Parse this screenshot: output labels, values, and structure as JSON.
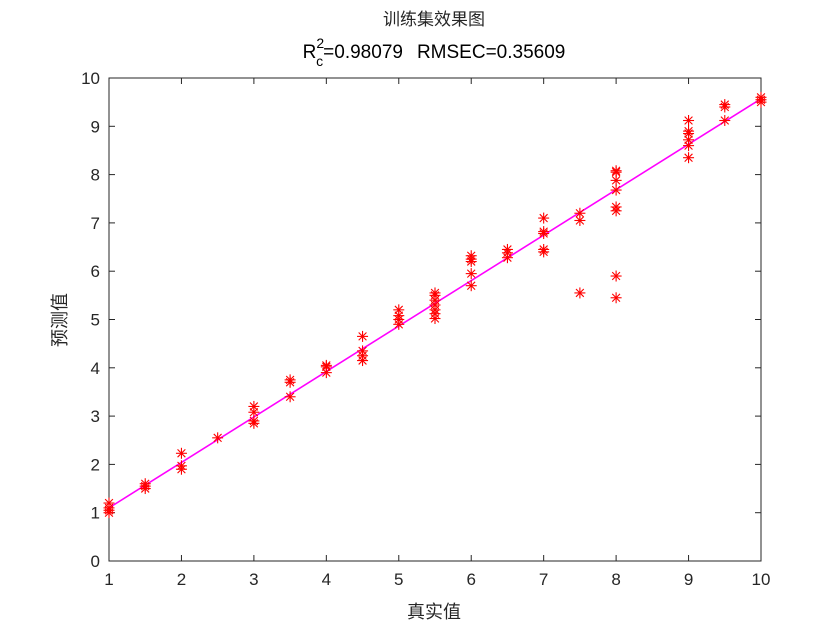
{
  "chart_data": {
    "type": "scatter",
    "title": "训练集效果图",
    "subtitle": {
      "r_base": "R",
      "r_sup": "2",
      "r_sub": "c",
      "r_value": "=0.98079",
      "rmsec": "RMSEC=0.35609"
    },
    "xlabel": "真实值",
    "ylabel": "预测值",
    "xlim": [
      1,
      10
    ],
    "ylim": [
      0,
      10
    ],
    "xticks": [
      "1",
      "2",
      "3",
      "4",
      "5",
      "6",
      "7",
      "8",
      "9",
      "10"
    ],
    "yticks": [
      "0",
      "1",
      "2",
      "3",
      "4",
      "5",
      "6",
      "7",
      "8",
      "9",
      "10"
    ],
    "grid": false,
    "marker": "asterisk",
    "marker_color": "#ff0000",
    "fit_line_color": "#ff00ff",
    "fit_line": {
      "x": [
        1,
        10
      ],
      "y": [
        1.1,
        9.57
      ]
    },
    "points": [
      {
        "x": 1,
        "y": 1.0
      },
      {
        "x": 1,
        "y": 1.05
      },
      {
        "x": 1,
        "y": 1.1
      },
      {
        "x": 1,
        "y": 1.2
      },
      {
        "x": 1.5,
        "y": 1.5
      },
      {
        "x": 1.5,
        "y": 1.55
      },
      {
        "x": 1.5,
        "y": 1.6
      },
      {
        "x": 2,
        "y": 1.9
      },
      {
        "x": 2,
        "y": 1.97
      },
      {
        "x": 2,
        "y": 2.23
      },
      {
        "x": 2.5,
        "y": 2.55
      },
      {
        "x": 3,
        "y": 2.85
      },
      {
        "x": 3,
        "y": 2.9
      },
      {
        "x": 3,
        "y": 3.08
      },
      {
        "x": 3,
        "y": 3.2
      },
      {
        "x": 3.5,
        "y": 3.4
      },
      {
        "x": 3.5,
        "y": 3.7
      },
      {
        "x": 3.5,
        "y": 3.75
      },
      {
        "x": 4,
        "y": 3.9
      },
      {
        "x": 4,
        "y": 4.02
      },
      {
        "x": 4,
        "y": 4.05
      },
      {
        "x": 4.5,
        "y": 4.15
      },
      {
        "x": 4.5,
        "y": 4.25
      },
      {
        "x": 4.5,
        "y": 4.35
      },
      {
        "x": 4.5,
        "y": 4.65
      },
      {
        "x": 5,
        "y": 4.9
      },
      {
        "x": 5,
        "y": 5.0
      },
      {
        "x": 5,
        "y": 5.08
      },
      {
        "x": 5,
        "y": 5.2
      },
      {
        "x": 5.5,
        "y": 5.02
      },
      {
        "x": 5.5,
        "y": 5.12
      },
      {
        "x": 5.5,
        "y": 5.2
      },
      {
        "x": 5.5,
        "y": 5.3
      },
      {
        "x": 5.5,
        "y": 5.4
      },
      {
        "x": 5.5,
        "y": 5.5
      },
      {
        "x": 5.5,
        "y": 5.55
      },
      {
        "x": 6,
        "y": 5.7
      },
      {
        "x": 6,
        "y": 5.95
      },
      {
        "x": 6,
        "y": 6.2
      },
      {
        "x": 6,
        "y": 6.25
      },
      {
        "x": 6,
        "y": 6.32
      },
      {
        "x": 6.5,
        "y": 6.28
      },
      {
        "x": 6.5,
        "y": 6.38
      },
      {
        "x": 6.5,
        "y": 6.45
      },
      {
        "x": 7,
        "y": 6.4
      },
      {
        "x": 7,
        "y": 6.45
      },
      {
        "x": 7,
        "y": 6.78
      },
      {
        "x": 7,
        "y": 6.82
      },
      {
        "x": 7,
        "y": 7.1
      },
      {
        "x": 7.5,
        "y": 5.55
      },
      {
        "x": 7.5,
        "y": 7.05
      },
      {
        "x": 7.5,
        "y": 7.2
      },
      {
        "x": 8,
        "y": 5.45
      },
      {
        "x": 8,
        "y": 5.9
      },
      {
        "x": 8,
        "y": 7.25
      },
      {
        "x": 8,
        "y": 7.33
      },
      {
        "x": 8,
        "y": 7.68
      },
      {
        "x": 8,
        "y": 7.88
      },
      {
        "x": 8,
        "y": 8.05
      },
      {
        "x": 8,
        "y": 8.08
      },
      {
        "x": 9,
        "y": 8.35
      },
      {
        "x": 9,
        "y": 8.6
      },
      {
        "x": 9,
        "y": 8.72
      },
      {
        "x": 9,
        "y": 8.85
      },
      {
        "x": 9,
        "y": 8.9
      },
      {
        "x": 9,
        "y": 9.12
      },
      {
        "x": 9.5,
        "y": 9.12
      },
      {
        "x": 9.5,
        "y": 9.4
      },
      {
        "x": 9.5,
        "y": 9.45
      },
      {
        "x": 10,
        "y": 9.5
      },
      {
        "x": 10,
        "y": 9.55
      },
      {
        "x": 10,
        "y": 9.6
      }
    ]
  }
}
